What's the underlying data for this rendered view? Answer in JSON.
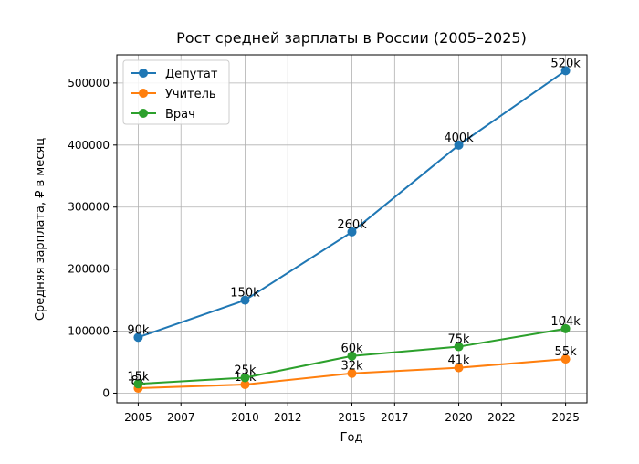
{
  "chart_data": {
    "type": "line",
    "title": "Рост средней зарплаты в России (2005–2025)",
    "xlabel": "Год",
    "ylabel": "Средняя зарплата, ₽ в месяц",
    "x": [
      2005,
      2010,
      2015,
      2020,
      2025
    ],
    "xlim": [
      2004.0,
      2026.0
    ],
    "ylim": [
      -15500,
      545500
    ],
    "x_ticks": [
      2005,
      2007,
      2010,
      2012,
      2015,
      2017,
      2020,
      2022,
      2025
    ],
    "x_tick_labels": [
      "2005",
      "2007",
      "2010",
      "2012",
      "2015",
      "2017",
      "2020",
      "2022",
      "2025"
    ],
    "y_ticks": [
      0,
      100000,
      200000,
      300000,
      400000,
      500000
    ],
    "y_tick_labels": [
      "0",
      "100000",
      "200000",
      "300000",
      "400000",
      "500000"
    ],
    "grid": true,
    "legend_position": "top-left",
    "series": [
      {
        "name": "Депутат",
        "color": "#1f77b4",
        "values": [
          90000,
          150000,
          260000,
          400000,
          520000
        ],
        "labels": [
          "90k",
          "150k",
          "260k",
          "400k",
          "520k"
        ]
      },
      {
        "name": "Учитель",
        "color": "#ff7f0e",
        "values": [
          8000,
          14000,
          32000,
          41000,
          55000
        ],
        "labels": [
          "8k",
          "14k",
          "32k",
          "41k",
          "55k"
        ]
      },
      {
        "name": "Врач",
        "color": "#2ca02c",
        "values": [
          15000,
          25000,
          60000,
          75000,
          104000
        ],
        "labels": [
          "15k",
          "25k",
          "60k",
          "75k",
          "104k"
        ]
      }
    ]
  }
}
